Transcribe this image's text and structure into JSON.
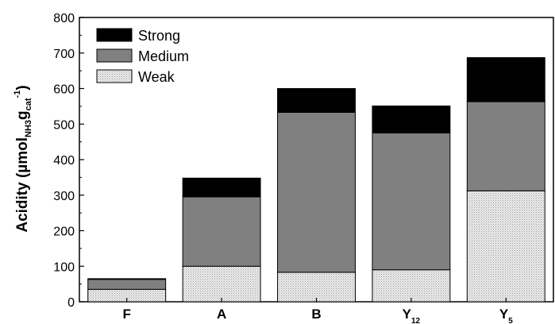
{
  "chart_data": {
    "type": "bar",
    "stacked": true,
    "categories": [
      {
        "main": "F",
        "sub": ""
      },
      {
        "main": "A",
        "sub": ""
      },
      {
        "main": "B",
        "sub": ""
      },
      {
        "main": "Y",
        "sub": "12"
      },
      {
        "main": "Y",
        "sub": "5"
      }
    ],
    "series": [
      {
        "name": "Weak",
        "values": [
          35,
          100,
          83,
          90,
          312
        ],
        "color": "#e4e4e4",
        "pattern": "dotted"
      },
      {
        "name": "Medium",
        "values": [
          28,
          195,
          450,
          385,
          251
        ],
        "color": "#808080",
        "pattern": "solid"
      },
      {
        "name": "Strong",
        "values": [
          2,
          53,
          67,
          76,
          124
        ],
        "color": "#000000",
        "pattern": "solid"
      }
    ],
    "legend_order": [
      "Strong",
      "Medium",
      "Weak"
    ],
    "legend_position": "top-left",
    "title": "",
    "xlabel": "",
    "ylabel": {
      "main": "Acidity (µmol",
      "sub1": "NH3",
      "mid": "g",
      "sub2": "cat",
      "sup": "-1",
      "close": ")"
    },
    "ylim": [
      0,
      800
    ],
    "yticks": [
      0,
      100,
      200,
      300,
      400,
      500,
      600,
      700,
      800
    ],
    "grid": false
  }
}
